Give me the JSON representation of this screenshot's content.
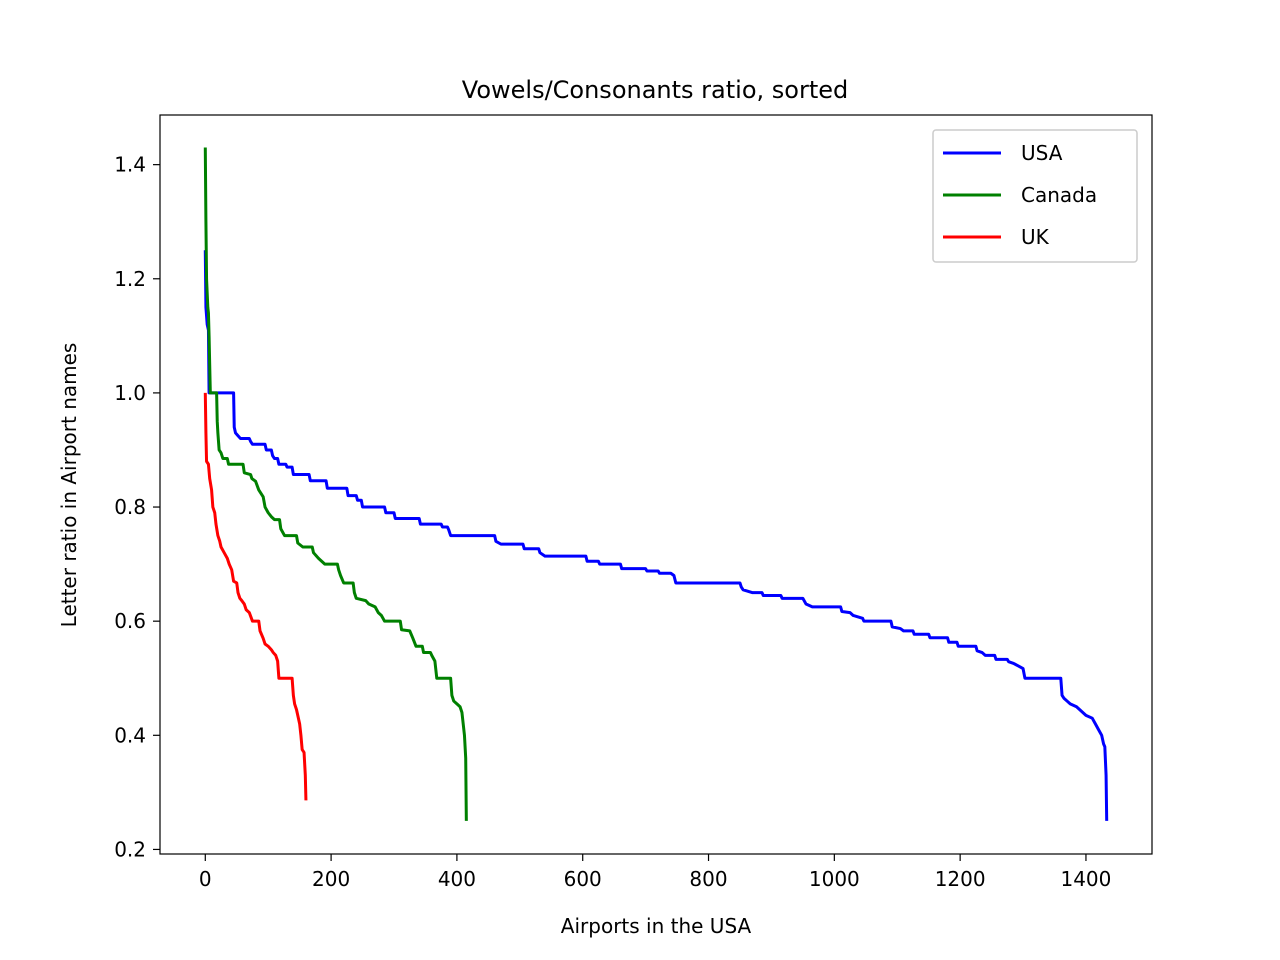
{
  "chart_data": {
    "type": "line",
    "title": "Vowels/Consonants ratio, sorted",
    "xlabel": "Airports in the USA",
    "ylabel": "Letter ratio in Airport names",
    "xlim": [
      -72,
      1505
    ],
    "ylim": [
      0.192,
      1.487
    ],
    "xticks": [
      0,
      200,
      400,
      600,
      800,
      1000,
      1200,
      1400
    ],
    "xtick_labels": [
      "0",
      "200",
      "400",
      "600",
      "800",
      "1000",
      "1200",
      "1400"
    ],
    "yticks": [
      0.2,
      0.4,
      0.6,
      0.8,
      1.0,
      1.2,
      1.4
    ],
    "ytick_labels": [
      "0.2",
      "0.4",
      "0.6",
      "0.8",
      "1.0",
      "1.2",
      "1.4"
    ],
    "grid": false,
    "legend": {
      "position": "top-right",
      "entries": [
        "USA",
        "Canada",
        "UK"
      ]
    },
    "series": [
      {
        "name": "USA",
        "color": "#0000ff",
        "points": [
          [
            0,
            1.25
          ],
          [
            1,
            1.15
          ],
          [
            3,
            1.12
          ],
          [
            5,
            1.11
          ],
          [
            6,
            1.0
          ],
          [
            45,
            1.0
          ],
          [
            46,
            0.94
          ],
          [
            48,
            0.93
          ],
          [
            52,
            0.925
          ],
          [
            56,
            0.92
          ],
          [
            70,
            0.92
          ],
          [
            72,
            0.915
          ],
          [
            75,
            0.91
          ],
          [
            95,
            0.91
          ],
          [
            97,
            0.9
          ],
          [
            105,
            0.9
          ],
          [
            107,
            0.89
          ],
          [
            110,
            0.885
          ],
          [
            115,
            0.885
          ],
          [
            117,
            0.875
          ],
          [
            128,
            0.875
          ],
          [
            130,
            0.87
          ],
          [
            138,
            0.87
          ],
          [
            140,
            0.857
          ],
          [
            165,
            0.857
          ],
          [
            167,
            0.846
          ],
          [
            192,
            0.846
          ],
          [
            194,
            0.833
          ],
          [
            225,
            0.833
          ],
          [
            227,
            0.82
          ],
          [
            240,
            0.82
          ],
          [
            242,
            0.812
          ],
          [
            248,
            0.812
          ],
          [
            250,
            0.8
          ],
          [
            285,
            0.8
          ],
          [
            287,
            0.79
          ],
          [
            300,
            0.79
          ],
          [
            302,
            0.78
          ],
          [
            340,
            0.78
          ],
          [
            342,
            0.77
          ],
          [
            375,
            0.77
          ],
          [
            377,
            0.765
          ],
          [
            385,
            0.765
          ],
          [
            387,
            0.76
          ],
          [
            390,
            0.75
          ],
          [
            460,
            0.75
          ],
          [
            462,
            0.74
          ],
          [
            470,
            0.735
          ],
          [
            505,
            0.735
          ],
          [
            507,
            0.727
          ],
          [
            530,
            0.727
          ],
          [
            532,
            0.72
          ],
          [
            540,
            0.714
          ],
          [
            605,
            0.714
          ],
          [
            607,
            0.705
          ],
          [
            625,
            0.705
          ],
          [
            627,
            0.7
          ],
          [
            660,
            0.7
          ],
          [
            662,
            0.692
          ],
          [
            700,
            0.692
          ],
          [
            702,
            0.688
          ],
          [
            720,
            0.688
          ],
          [
            722,
            0.684
          ],
          [
            740,
            0.684
          ],
          [
            745,
            0.68
          ],
          [
            748,
            0.667
          ],
          [
            850,
            0.667
          ],
          [
            852,
            0.66
          ],
          [
            855,
            0.655
          ],
          [
            870,
            0.65
          ],
          [
            885,
            0.65
          ],
          [
            887,
            0.645
          ],
          [
            915,
            0.645
          ],
          [
            917,
            0.64
          ],
          [
            950,
            0.64
          ],
          [
            955,
            0.63
          ],
          [
            965,
            0.625
          ],
          [
            1010,
            0.625
          ],
          [
            1012,
            0.617
          ],
          [
            1025,
            0.615
          ],
          [
            1030,
            0.61
          ],
          [
            1045,
            0.605
          ],
          [
            1047,
            0.6
          ],
          [
            1090,
            0.6
          ],
          [
            1092,
            0.59
          ],
          [
            1105,
            0.587
          ],
          [
            1110,
            0.583
          ],
          [
            1125,
            0.583
          ],
          [
            1127,
            0.577
          ],
          [
            1150,
            0.577
          ],
          [
            1152,
            0.571
          ],
          [
            1180,
            0.571
          ],
          [
            1182,
            0.563
          ],
          [
            1195,
            0.563
          ],
          [
            1197,
            0.556
          ],
          [
            1225,
            0.556
          ],
          [
            1227,
            0.548
          ],
          [
            1235,
            0.545
          ],
          [
            1240,
            0.54
          ],
          [
            1255,
            0.54
          ],
          [
            1257,
            0.533
          ],
          [
            1275,
            0.533
          ],
          [
            1277,
            0.529
          ],
          [
            1285,
            0.526
          ],
          [
            1295,
            0.52
          ],
          [
            1300,
            0.517
          ],
          [
            1303,
            0.5
          ],
          [
            1360,
            0.5
          ],
          [
            1362,
            0.47
          ],
          [
            1365,
            0.465
          ],
          [
            1370,
            0.46
          ],
          [
            1375,
            0.455
          ],
          [
            1385,
            0.45
          ],
          [
            1395,
            0.44
          ],
          [
            1400,
            0.435
          ],
          [
            1410,
            0.43
          ],
          [
            1415,
            0.42
          ],
          [
            1420,
            0.41
          ],
          [
            1425,
            0.4
          ],
          [
            1428,
            0.385
          ],
          [
            1430,
            0.38
          ],
          [
            1432,
            0.33
          ],
          [
            1433,
            0.25
          ]
        ]
      },
      {
        "name": "Canada",
        "color": "#008000",
        "points": [
          [
            0,
            1.43
          ],
          [
            1,
            1.3
          ],
          [
            2,
            1.2
          ],
          [
            4,
            1.15
          ],
          [
            5,
            1.14
          ],
          [
            6,
            1.1
          ],
          [
            7,
            1.05
          ],
          [
            8,
            1.0
          ],
          [
            18,
            1.0
          ],
          [
            19,
            0.95
          ],
          [
            20,
            0.93
          ],
          [
            22,
            0.9
          ],
          [
            25,
            0.895
          ],
          [
            28,
            0.885
          ],
          [
            35,
            0.885
          ],
          [
            37,
            0.875
          ],
          [
            60,
            0.875
          ],
          [
            62,
            0.86
          ],
          [
            72,
            0.857
          ],
          [
            74,
            0.85
          ],
          [
            80,
            0.845
          ],
          [
            85,
            0.83
          ],
          [
            92,
            0.818
          ],
          [
            95,
            0.8
          ],
          [
            100,
            0.79
          ],
          [
            105,
            0.783
          ],
          [
            110,
            0.778
          ],
          [
            118,
            0.778
          ],
          [
            120,
            0.762
          ],
          [
            126,
            0.75
          ],
          [
            145,
            0.75
          ],
          [
            147,
            0.737
          ],
          [
            155,
            0.73
          ],
          [
            170,
            0.73
          ],
          [
            172,
            0.72
          ],
          [
            180,
            0.71
          ],
          [
            190,
            0.7
          ],
          [
            210,
            0.7
          ],
          [
            212,
            0.69
          ],
          [
            215,
            0.68
          ],
          [
            220,
            0.667
          ],
          [
            235,
            0.667
          ],
          [
            237,
            0.65
          ],
          [
            240,
            0.64
          ],
          [
            255,
            0.636
          ],
          [
            260,
            0.63
          ],
          [
            270,
            0.625
          ],
          [
            275,
            0.615
          ],
          [
            280,
            0.61
          ],
          [
            285,
            0.6
          ],
          [
            310,
            0.6
          ],
          [
            312,
            0.585
          ],
          [
            325,
            0.583
          ],
          [
            330,
            0.57
          ],
          [
            335,
            0.556
          ],
          [
            345,
            0.556
          ],
          [
            347,
            0.545
          ],
          [
            358,
            0.545
          ],
          [
            360,
            0.54
          ],
          [
            365,
            0.53
          ],
          [
            368,
            0.5
          ],
          [
            390,
            0.5
          ],
          [
            392,
            0.47
          ],
          [
            395,
            0.46
          ],
          [
            400,
            0.455
          ],
          [
            405,
            0.45
          ],
          [
            408,
            0.44
          ],
          [
            410,
            0.42
          ],
          [
            412,
            0.4
          ],
          [
            414,
            0.36
          ],
          [
            415,
            0.25
          ]
        ]
      },
      {
        "name": "UK",
        "color": "#ff0000",
        "points": [
          [
            0,
            1.0
          ],
          [
            1,
            0.93
          ],
          [
            2,
            0.88
          ],
          [
            5,
            0.875
          ],
          [
            7,
            0.85
          ],
          [
            10,
            0.83
          ],
          [
            12,
            0.8
          ],
          [
            15,
            0.79
          ],
          [
            17,
            0.77
          ],
          [
            20,
            0.75
          ],
          [
            23,
            0.74
          ],
          [
            25,
            0.73
          ],
          [
            30,
            0.72
          ],
          [
            35,
            0.71
          ],
          [
            38,
            0.7
          ],
          [
            42,
            0.69
          ],
          [
            45,
            0.67
          ],
          [
            50,
            0.667
          ],
          [
            52,
            0.65
          ],
          [
            55,
            0.64
          ],
          [
            58,
            0.636
          ],
          [
            62,
            0.63
          ],
          [
            65,
            0.62
          ],
          [
            70,
            0.615
          ],
          [
            75,
            0.6
          ],
          [
            85,
            0.6
          ],
          [
            87,
            0.583
          ],
          [
            92,
            0.57
          ],
          [
            95,
            0.56
          ],
          [
            100,
            0.556
          ],
          [
            105,
            0.55
          ],
          [
            108,
            0.545
          ],
          [
            112,
            0.54
          ],
          [
            115,
            0.53
          ],
          [
            117,
            0.5
          ],
          [
            138,
            0.5
          ],
          [
            140,
            0.47
          ],
          [
            142,
            0.455
          ],
          [
            145,
            0.445
          ],
          [
            148,
            0.43
          ],
          [
            150,
            0.42
          ],
          [
            152,
            0.4
          ],
          [
            154,
            0.375
          ],
          [
            157,
            0.37
          ],
          [
            159,
            0.33
          ],
          [
            160,
            0.286
          ]
        ]
      }
    ]
  }
}
